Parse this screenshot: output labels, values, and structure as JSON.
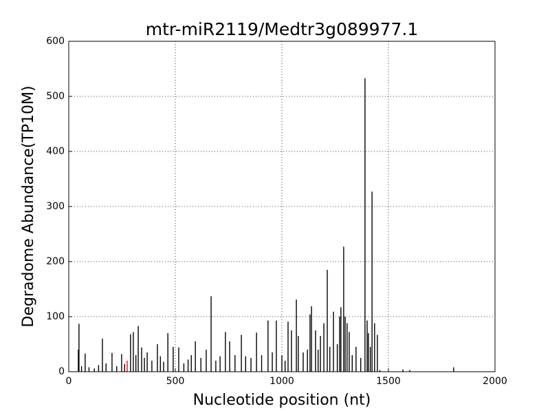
{
  "chart_data": {
    "type": "stem",
    "title": "mtr-miR2119/Medtr3g089977.1",
    "x_label": "Nucleotide position (nt)",
    "y_label": "Degradome Abundance(TP10M)",
    "xlim": [
      0,
      2000
    ],
    "xticks": [
      0,
      500,
      1000,
      1500,
      2000
    ],
    "ylim": [
      0,
      600
    ],
    "yticks": [
      0,
      100,
      200,
      300,
      400,
      500,
      600
    ],
    "grid": true,
    "series": [
      {
        "color": "#000000",
        "x": [
          45,
          48,
          60,
          77,
          95,
          120,
          140,
          158,
          175,
          203,
          225,
          248,
          262,
          290,
          303,
          315,
          326,
          342,
          355,
          368,
          390,
          416,
          430,
          445,
          465,
          490,
          516,
          540,
          560,
          575,
          594,
          620,
          645,
          668,
          690,
          710,
          735,
          755,
          780,
          810,
          830,
          855,
          881,
          905,
          935,
          955,
          974,
          1000,
          1015,
          1029,
          1045,
          1068,
          1077,
          1100,
          1120,
          1132,
          1139,
          1158,
          1170,
          1181,
          1197,
          1213,
          1225,
          1242,
          1260,
          1271,
          1277,
          1290,
          1297,
          1306,
          1316,
          1330,
          1348,
          1370,
          1390,
          1400,
          1406,
          1415,
          1423,
          1435,
          1448,
          1460,
          1568,
          1600,
          1806
        ],
        "values": [
          40,
          87,
          10,
          33,
          8,
          6,
          12,
          60,
          15,
          34,
          10,
          32,
          14,
          68,
          72,
          30,
          83,
          44,
          25,
          35,
          20,
          50,
          28,
          18,
          70,
          45,
          44,
          15,
          22,
          30,
          55,
          25,
          40,
          137,
          20,
          28,
          72,
          55,
          30,
          67,
          28,
          25,
          71,
          30,
          93,
          35,
          93,
          30,
          20,
          91,
          75,
          131,
          65,
          35,
          40,
          104,
          119,
          75,
          40,
          65,
          88,
          185,
          45,
          109,
          50,
          100,
          117,
          227,
          100,
          88,
          72,
          30,
          45,
          25,
          533,
          93,
          70,
          45,
          327,
          88,
          67,
          3,
          4,
          3,
          8
        ]
      },
      {
        "color": "#ff0000",
        "x": [
          274
        ],
        "values": [
          20
        ]
      }
    ]
  }
}
